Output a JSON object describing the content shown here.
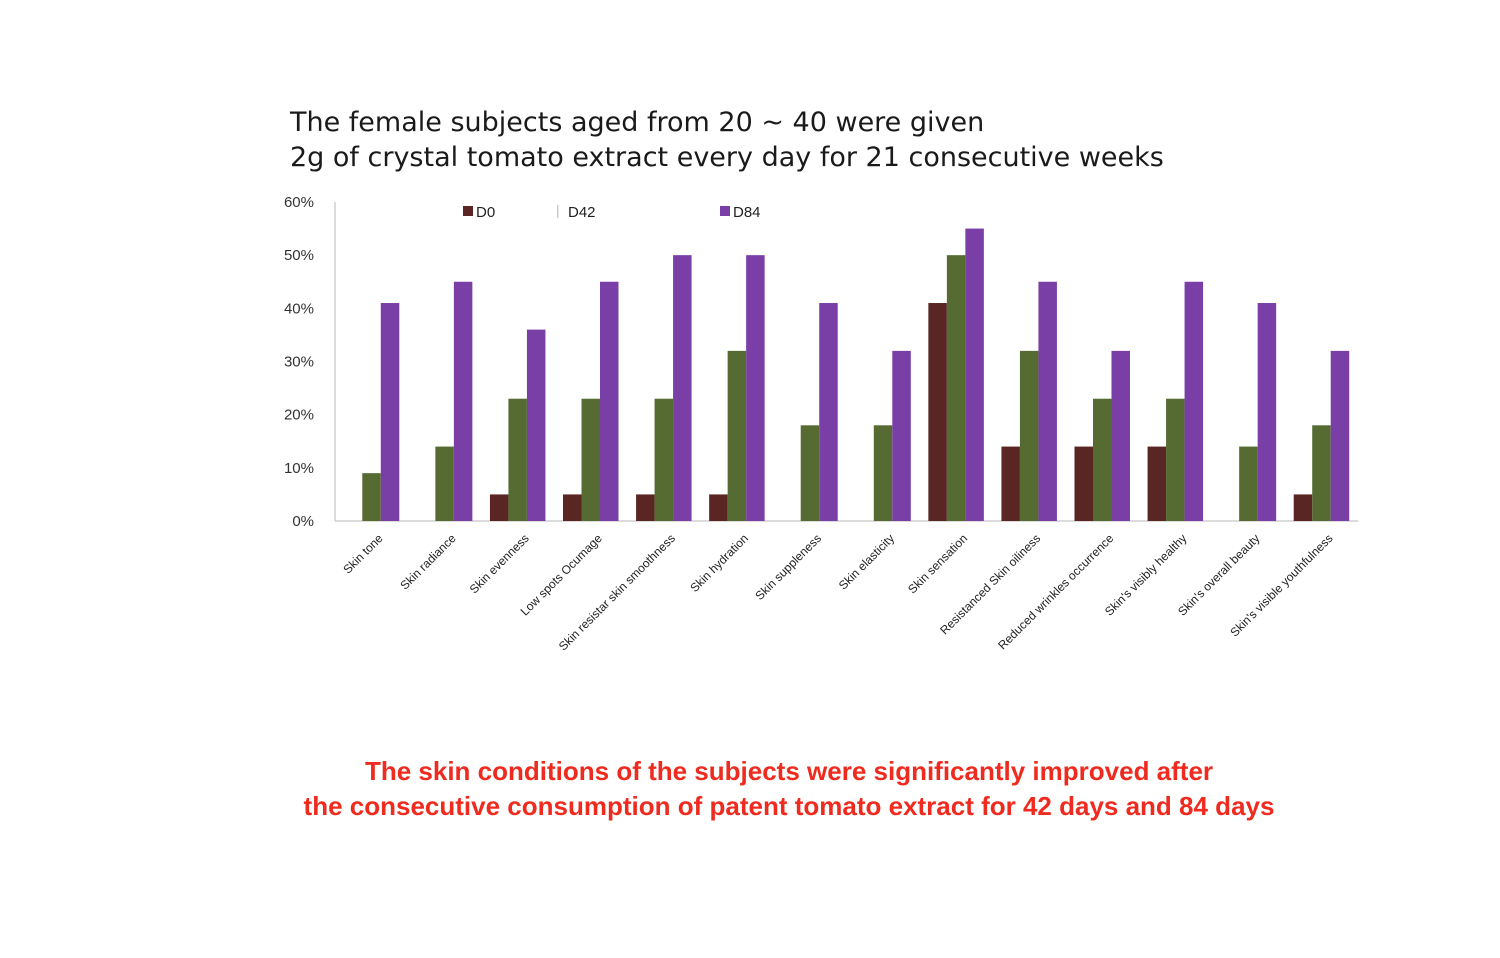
{
  "header": {
    "line1": "The female subjects aged from 20 ~ 40 were given",
    "line2": "2g of crystal tomato extract every day for 21 consecutive weeks"
  },
  "caption": {
    "line1": "The skin conditions of the subjects were significantly improved after",
    "line2": "the consecutive consumption of patent tomato extract for 42 days and 84 days"
  },
  "colors": {
    "D0": "#5a2624",
    "D42": "#566b32",
    "D84": "#7a3fa6",
    "caption": "#ef2b1f"
  },
  "chart_data": {
    "type": "bar",
    "title": "",
    "xlabel": "",
    "ylabel": "",
    "ylim": [
      0,
      60
    ],
    "yticks": [
      "0%",
      "10%",
      "20%",
      "30%",
      "40%",
      "50%",
      "60%"
    ],
    "legend_position": "top",
    "grid": false,
    "categories": [
      "Skin tone",
      "Skin radiance",
      "Skin evenness",
      "Low spots Ocumage",
      "Skin resistar skin smoothness",
      "Skin hydration",
      "Skin suppleness",
      "Skin elasticity",
      "Skin sensation",
      "Resistanced Skin oiliness",
      "Reduced wrinkles occurrence",
      "Skin's visibly healthy",
      "Skin's overall beauty",
      "Skin's visible youthfulness"
    ],
    "series": [
      {
        "name": "D0",
        "values": [
          0,
          0,
          5,
          5,
          5,
          5,
          0,
          0,
          41,
          14,
          14,
          14,
          0,
          5
        ]
      },
      {
        "name": "D42",
        "values": [
          9,
          14,
          23,
          23,
          23,
          32,
          18,
          18,
          50,
          32,
          23,
          23,
          14,
          18
        ]
      },
      {
        "name": "D84",
        "values": [
          41,
          45,
          36,
          45,
          50,
          50,
          41,
          32,
          55,
          45,
          32,
          45,
          41,
          32
        ]
      }
    ]
  }
}
